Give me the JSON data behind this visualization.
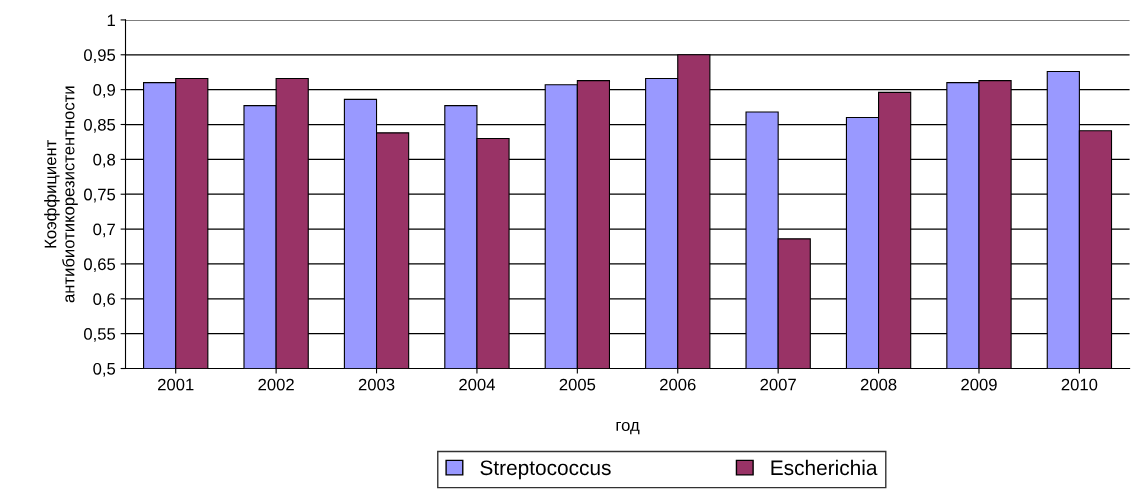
{
  "chart_data": {
    "type": "bar",
    "xlabel": "год",
    "ylabel": "Коэффициент\nантибиотикорезистентности",
    "categories": [
      "2001",
      "2002",
      "2003",
      "2004",
      "2005",
      "2006",
      "2007",
      "2008",
      "2009",
      "2010"
    ],
    "series": [
      {
        "name": "Streptococcus",
        "color": "#9999ff",
        "values": [
          0.91,
          0.877,
          0.886,
          0.877,
          0.907,
          0.916,
          0.868,
          0.86,
          0.91,
          0.926
        ]
      },
      {
        "name": "Escherichia",
        "color": "#993366",
        "values": [
          0.916,
          0.916,
          0.838,
          0.83,
          0.913,
          0.95,
          0.686,
          0.896,
          0.913,
          0.841
        ]
      }
    ],
    "ylim": [
      0.5,
      1
    ],
    "yticks": [
      {
        "value": 0.5,
        "label": "0,5"
      },
      {
        "value": 0.55,
        "label": "0,55"
      },
      {
        "value": 0.6,
        "label": "0,6"
      },
      {
        "value": 0.65,
        "label": "0,65"
      },
      {
        "value": 0.7,
        "label": "0,7"
      },
      {
        "value": 0.75,
        "label": "0,75"
      },
      {
        "value": 0.8,
        "label": "0,8"
      },
      {
        "value": 0.85,
        "label": "0,85"
      },
      {
        "value": 0.9,
        "label": "0,9"
      },
      {
        "value": 0.95,
        "label": "0,95"
      },
      {
        "value": 1,
        "label": "1"
      }
    ],
    "grid": "y",
    "legend": "bottom"
  }
}
